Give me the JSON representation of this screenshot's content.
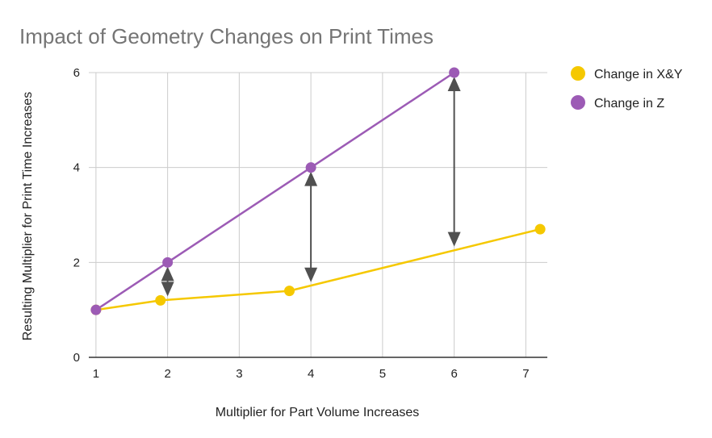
{
  "chart_data": {
    "type": "line",
    "title": "Impact of Geometry Changes on Print Times",
    "xlabel": "Multiplier for Part Volume Increases",
    "ylabel": "Resulting Multiplier for Print Time Increases",
    "xlim": [
      0.9,
      7.3
    ],
    "ylim": [
      0,
      6
    ],
    "x_ticks": [
      1,
      2,
      3,
      4,
      5,
      6,
      7
    ],
    "y_ticks": [
      0,
      2,
      4,
      6
    ],
    "grid": true,
    "legend_position": "right",
    "series": [
      {
        "name": "Change in X&Y",
        "color": "#f5c800",
        "points": [
          [
            1,
            1
          ],
          [
            1.9,
            1.2
          ],
          [
            3.7,
            1.4
          ],
          [
            7.2,
            2.7
          ]
        ]
      },
      {
        "name": "Change in Z",
        "color": "#9c5bb5",
        "points": [
          [
            1,
            1
          ],
          [
            2,
            2
          ],
          [
            4,
            4
          ],
          [
            6,
            6
          ]
        ]
      }
    ],
    "annotations": {
      "type": "double-arrows",
      "color": "#505050",
      "arrows": [
        {
          "x": 2,
          "y_from": 1.2,
          "y_to": 2
        },
        {
          "x": 4,
          "y_from": 1.5,
          "y_to": 4
        },
        {
          "x": 6,
          "y_from": 2.25,
          "y_to": 6
        }
      ]
    }
  }
}
